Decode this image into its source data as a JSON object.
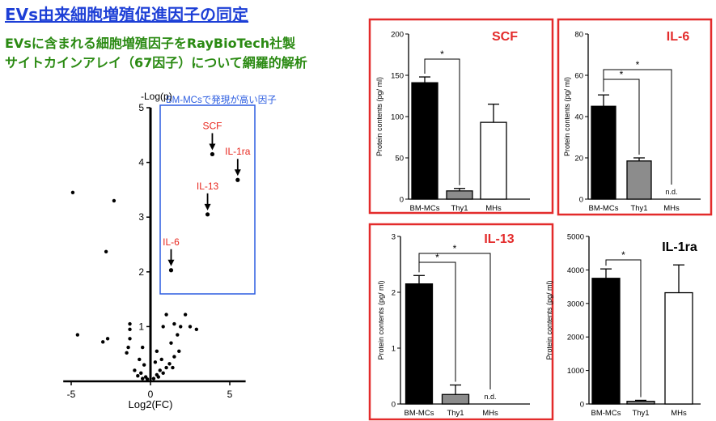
{
  "header": {
    "title": "EVs由来細胞増殖促進因子の同定",
    "subtitle_line1": "EVsに含まれる細胞増殖因子をRayBioTech社製",
    "subtitle_line2": "サイトカインアレイ（67因子）について網羅的解析"
  },
  "colors": {
    "title": "#1d3fd6",
    "subtitle": "#2a8a12",
    "highlight_label": "#e8281f",
    "highlight_box": "#2b5ce0",
    "panel_border": "#e32b2b"
  },
  "chart_data": [
    {
      "type": "scatter",
      "xlabel": "Log2(FC)",
      "ylabel": "-Log(p)",
      "xlim": [
        -5.5,
        6
      ],
      "ylim": [
        0,
        5
      ],
      "xticks": [
        -5,
        0,
        5
      ],
      "yticks": [
        1,
        2,
        3,
        4,
        5
      ],
      "highlight_box_label": "BM-MCsで発現が高い因子",
      "labeled_points": [
        {
          "label": "SCF",
          "x": 3.9,
          "y": 4.15
        },
        {
          "label": "IL-1ra",
          "x": 5.5,
          "y": 3.68
        },
        {
          "label": "IL-13",
          "x": 3.6,
          "y": 3.05
        },
        {
          "label": "IL-6",
          "x": 1.3,
          "y": 2.03
        }
      ],
      "points": [
        {
          "x": -4.9,
          "y": 3.45
        },
        {
          "x": -2.3,
          "y": 3.3
        },
        {
          "x": -2.8,
          "y": 2.37
        },
        {
          "x": -4.6,
          "y": 0.85
        },
        {
          "x": -3.0,
          "y": 0.72
        },
        {
          "x": -2.7,
          "y": 0.78
        },
        {
          "x": -1.3,
          "y": 0.95
        },
        {
          "x": -1.3,
          "y": 1.05
        },
        {
          "x": -1.3,
          "y": 0.78
        },
        {
          "x": -1.4,
          "y": 0.62
        },
        {
          "x": -1.5,
          "y": 0.52
        },
        {
          "x": -0.5,
          "y": 0.62
        },
        {
          "x": -0.7,
          "y": 0.4
        },
        {
          "x": -0.4,
          "y": 0.3
        },
        {
          "x": -1.0,
          "y": 0.2
        },
        {
          "x": -0.6,
          "y": 0.15
        },
        {
          "x": -0.8,
          "y": 0.1
        },
        {
          "x": -0.5,
          "y": 0.05
        },
        {
          "x": -0.3,
          "y": 0.08
        },
        {
          "x": -0.2,
          "y": 0.04
        },
        {
          "x": 0.2,
          "y": 0.05
        },
        {
          "x": 0.5,
          "y": 0.08
        },
        {
          "x": 0.4,
          "y": 0.12
        },
        {
          "x": 0.6,
          "y": 0.2
        },
        {
          "x": 0.8,
          "y": 0.15
        },
        {
          "x": 1.0,
          "y": 0.25
        },
        {
          "x": 1.2,
          "y": 0.32
        },
        {
          "x": 0.7,
          "y": 0.4
        },
        {
          "x": 1.5,
          "y": 0.45
        },
        {
          "x": 1.8,
          "y": 0.55
        },
        {
          "x": 1.3,
          "y": 0.7
        },
        {
          "x": 1.7,
          "y": 0.85
        },
        {
          "x": 1.9,
          "y": 1.0
        },
        {
          "x": 1.0,
          "y": 1.22
        },
        {
          "x": 0.8,
          "y": 1.0
        },
        {
          "x": 2.2,
          "y": 1.22
        },
        {
          "x": 2.5,
          "y": 1.0
        },
        {
          "x": 2.9,
          "y": 0.95
        },
        {
          "x": 1.5,
          "y": 1.05
        },
        {
          "x": 0.4,
          "y": 0.55
        },
        {
          "x": 0.3,
          "y": 0.35
        },
        {
          "x": 1.4,
          "y": 0.25
        }
      ]
    },
    {
      "type": "bar",
      "panel": "SCF",
      "title": "SCF",
      "categories": [
        "BM-MCs",
        "Thy1",
        "MHs"
      ],
      "values": [
        141,
        10,
        93
      ],
      "errors": [
        7,
        3,
        22
      ],
      "bar_colors": [
        "#000000",
        "#8c8c8c",
        "#ffffff"
      ],
      "ylabel": "Protein contents (pg/ ml)",
      "ylim": [
        0,
        200
      ],
      "yticks": [
        0,
        50,
        100,
        150,
        200
      ],
      "significance": [
        {
          "from": 0,
          "to": 1,
          "label": "*"
        }
      ]
    },
    {
      "type": "bar",
      "panel": "IL-6",
      "title": "IL-6",
      "categories": [
        "BM-MCs",
        "Thy1",
        "MHs"
      ],
      "values": [
        45,
        18.5,
        0
      ],
      "errors": [
        5.5,
        1.5,
        0
      ],
      "bar_colors": [
        "#000000",
        "#8c8c8c",
        "#ffffff"
      ],
      "value_labels": [
        "",
        "",
        "n.d."
      ],
      "ylabel": "Protein contents (pg/ ml)",
      "ylim": [
        0,
        80
      ],
      "yticks": [
        0,
        20,
        40,
        60,
        80
      ],
      "significance": [
        {
          "from": 0,
          "to": 1,
          "label": "*"
        },
        {
          "from": 0,
          "to": 2,
          "label": "*"
        }
      ]
    },
    {
      "type": "bar",
      "panel": "IL-13",
      "title": "IL-13",
      "categories": [
        "BM-MCs",
        "Thy1",
        "MHs"
      ],
      "values": [
        2.15,
        0.17,
        0
      ],
      "errors": [
        0.15,
        0.17,
        0
      ],
      "bar_colors": [
        "#000000",
        "#8c8c8c",
        "#ffffff"
      ],
      "value_labels": [
        "",
        "",
        "n.d."
      ],
      "ylabel": "Protein contents (pg/ ml)",
      "ylim": [
        0,
        3
      ],
      "yticks": [
        0,
        1,
        2,
        3
      ],
      "significance": [
        {
          "from": 0,
          "to": 1,
          "label": "*"
        },
        {
          "from": 0,
          "to": 2,
          "label": "*"
        }
      ]
    },
    {
      "type": "bar",
      "panel": "IL-1ra",
      "title": "IL-1ra",
      "categories": [
        "BM-MCs",
        "Thy1",
        "MHs"
      ],
      "values": [
        3750,
        80,
        3320
      ],
      "errors": [
        280,
        30,
        830
      ],
      "bar_colors": [
        "#000000",
        "#8c8c8c",
        "#ffffff"
      ],
      "ylabel": "Protein contents (pg/ ml)",
      "ylim": [
        0,
        5000
      ],
      "yticks": [
        0,
        1000,
        2000,
        3000,
        4000,
        5000
      ],
      "significance": [
        {
          "from": 0,
          "to": 1,
          "label": "*"
        }
      ]
    }
  ]
}
